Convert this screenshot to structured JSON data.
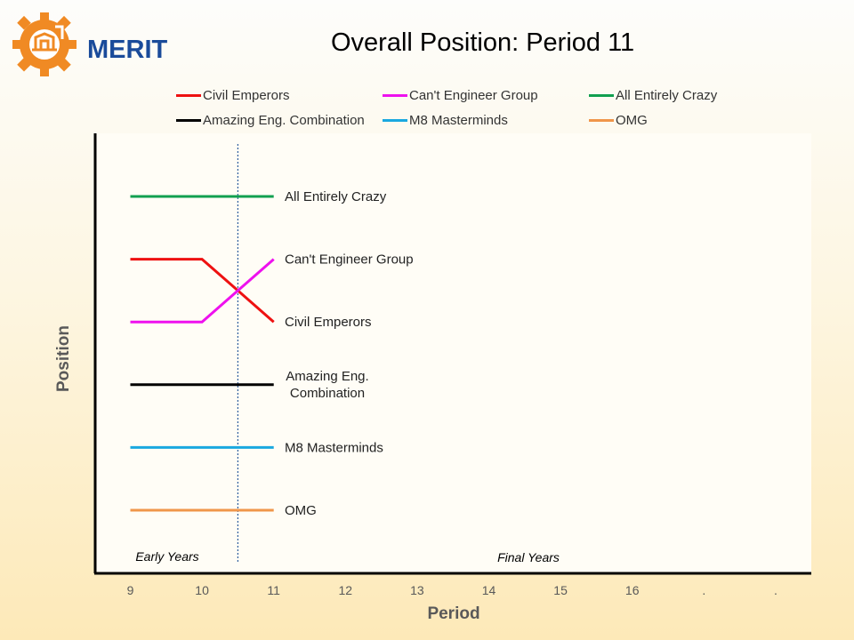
{
  "logo": {
    "text": "MERIT"
  },
  "chart_data": {
    "type": "line",
    "title": "Overall Position: Period 11",
    "xlabel": "Period",
    "ylabel": "Position",
    "x_ticks": [
      "9",
      "10",
      "11",
      "12",
      "13",
      "14",
      "15",
      "16",
      ".",
      "."
    ],
    "x": [
      9,
      10,
      11
    ],
    "ylim": [
      6,
      1
    ],
    "legend_placement": "top",
    "series": [
      {
        "name": "Civil Emperors",
        "color": "#ee1111",
        "values": [
          2,
          2,
          3
        ],
        "end_label": "Civil Emperors"
      },
      {
        "name": "Can't Engineer Group",
        "color": "#ee11ee",
        "values": [
          3,
          3,
          2
        ],
        "end_label": "Can't Engineer Group"
      },
      {
        "name": "All Entirely Crazy",
        "color": "#11a050",
        "values": [
          1,
          1,
          1
        ],
        "end_label": "All Entirely Crazy"
      },
      {
        "name": "Amazing Eng. Combination",
        "color": "#000000",
        "values": [
          4,
          4,
          4
        ],
        "end_label": "Amazing Eng.\nCombination"
      },
      {
        "name": "M8 Masterminds",
        "color": "#1aa8e0",
        "values": [
          5,
          5,
          5
        ],
        "end_label": "M8 Masterminds"
      },
      {
        "name": "OMG",
        "color": "#f0964a",
        "values": [
          6,
          6,
          6
        ],
        "end_label": "OMG"
      }
    ],
    "annotations": {
      "early": "Early Years",
      "final": "Final Years",
      "divider_x": 10.5
    }
  }
}
